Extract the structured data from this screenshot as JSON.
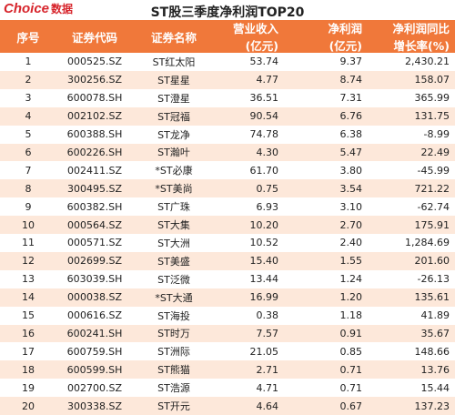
{
  "header": {
    "logo": "Choice",
    "logo_sub": "数据",
    "title": "ST股三季度净利润TOP20"
  },
  "table": {
    "columns": [
      [
        "序号"
      ],
      [
        "证券代码"
      ],
      [
        "证券名称"
      ],
      [
        "营业收入",
        "(亿元)"
      ],
      [
        "净利润",
        "(亿元)"
      ],
      [
        "净利润同比",
        "增长率(%)"
      ]
    ],
    "rows": [
      [
        "1",
        "000525.SZ",
        "ST红太阳",
        "53.74",
        "9.37",
        "2,430.21"
      ],
      [
        "2",
        "300256.SZ",
        "ST星星",
        "4.77",
        "8.74",
        "158.07"
      ],
      [
        "3",
        "600078.SH",
        "ST澄星",
        "36.51",
        "7.31",
        "365.99"
      ],
      [
        "4",
        "002102.SZ",
        "ST冠福",
        "90.54",
        "6.76",
        "131.75"
      ],
      [
        "5",
        "600388.SH",
        "ST龙净",
        "74.78",
        "6.38",
        "-8.99"
      ],
      [
        "6",
        "600226.SH",
        "ST瀚叶",
        "4.30",
        "5.47",
        "22.49"
      ],
      [
        "7",
        "002411.SZ",
        "*ST必康",
        "61.70",
        "3.80",
        "-45.99"
      ],
      [
        "8",
        "300495.SZ",
        "*ST美尚",
        "0.75",
        "3.54",
        "721.22"
      ],
      [
        "9",
        "600382.SH",
        "ST广珠",
        "6.93",
        "3.10",
        "-62.74"
      ],
      [
        "10",
        "000564.SZ",
        "ST大集",
        "10.20",
        "2.70",
        "175.91"
      ],
      [
        "11",
        "000571.SZ",
        "ST大洲",
        "10.52",
        "2.40",
        "1,284.69"
      ],
      [
        "12",
        "002699.SZ",
        "ST美盛",
        "15.40",
        "1.55",
        "201.60"
      ],
      [
        "13",
        "603039.SH",
        "ST泛微",
        "13.44",
        "1.24",
        "-26.13"
      ],
      [
        "14",
        "000038.SZ",
        "*ST大通",
        "16.99",
        "1.20",
        "135.61"
      ],
      [
        "15",
        "000616.SZ",
        "ST海投",
        "0.38",
        "1.18",
        "41.89"
      ],
      [
        "16",
        "600241.SH",
        "ST时万",
        "7.57",
        "0.91",
        "35.67"
      ],
      [
        "17",
        "600759.SH",
        "ST洲际",
        "21.05",
        "0.85",
        "148.66"
      ],
      [
        "18",
        "600599.SH",
        "ST熊猫",
        "2.71",
        "0.71",
        "13.76"
      ],
      [
        "19",
        "002700.SZ",
        "ST浩源",
        "4.71",
        "0.71",
        "15.44"
      ],
      [
        "20",
        "300338.SZ",
        "ST开元",
        "4.64",
        "0.67",
        "137.23"
      ]
    ]
  }
}
